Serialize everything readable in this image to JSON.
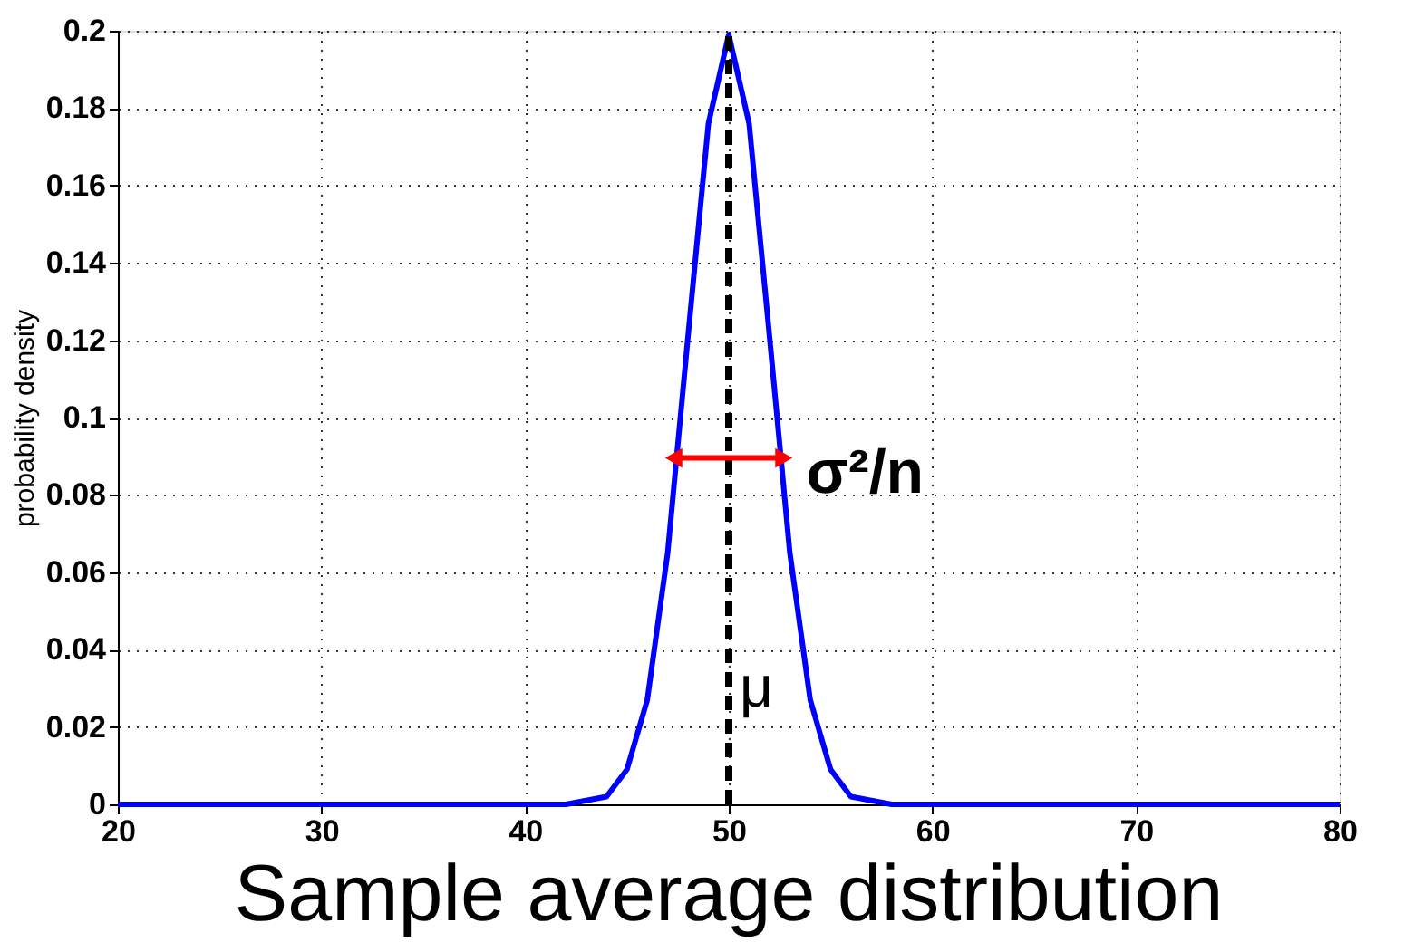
{
  "chart_data": {
    "type": "line",
    "title": "Sample average distribution",
    "ylabel": "probability density",
    "x": [
      20,
      30,
      40,
      42,
      43,
      44,
      45,
      46,
      47,
      48,
      49,
      50,
      51,
      52,
      53,
      54,
      55,
      56,
      57,
      58,
      60,
      70,
      80
    ],
    "series": [
      {
        "color": "#0000ff",
        "values": [
          0,
          0,
          0,
          0,
          0.001,
          0.002,
          0.009,
          0.027,
          0.065,
          0.121,
          0.176,
          0.199,
          0.176,
          0.121,
          0.065,
          0.027,
          0.009,
          0.002,
          0.001,
          0,
          0,
          0,
          0
        ]
      }
    ],
    "xlim": [
      20,
      80
    ],
    "xticks": [
      20,
      30,
      40,
      50,
      60,
      70,
      80
    ],
    "ylim": [
      0,
      0.2
    ],
    "yticks": [
      0,
      0.02,
      0.04,
      0.06,
      0.08,
      0.1,
      0.12,
      0.14,
      0.16,
      0.18,
      0.2
    ],
    "grid": true,
    "marker": "none",
    "line_style": "solid",
    "ref_lines": [
      {
        "axis": "x",
        "value": 50,
        "label": "μ",
        "color": "#000000",
        "line_style": "dashed"
      }
    ],
    "annotations": [
      "σ²/n"
    ]
  }
}
